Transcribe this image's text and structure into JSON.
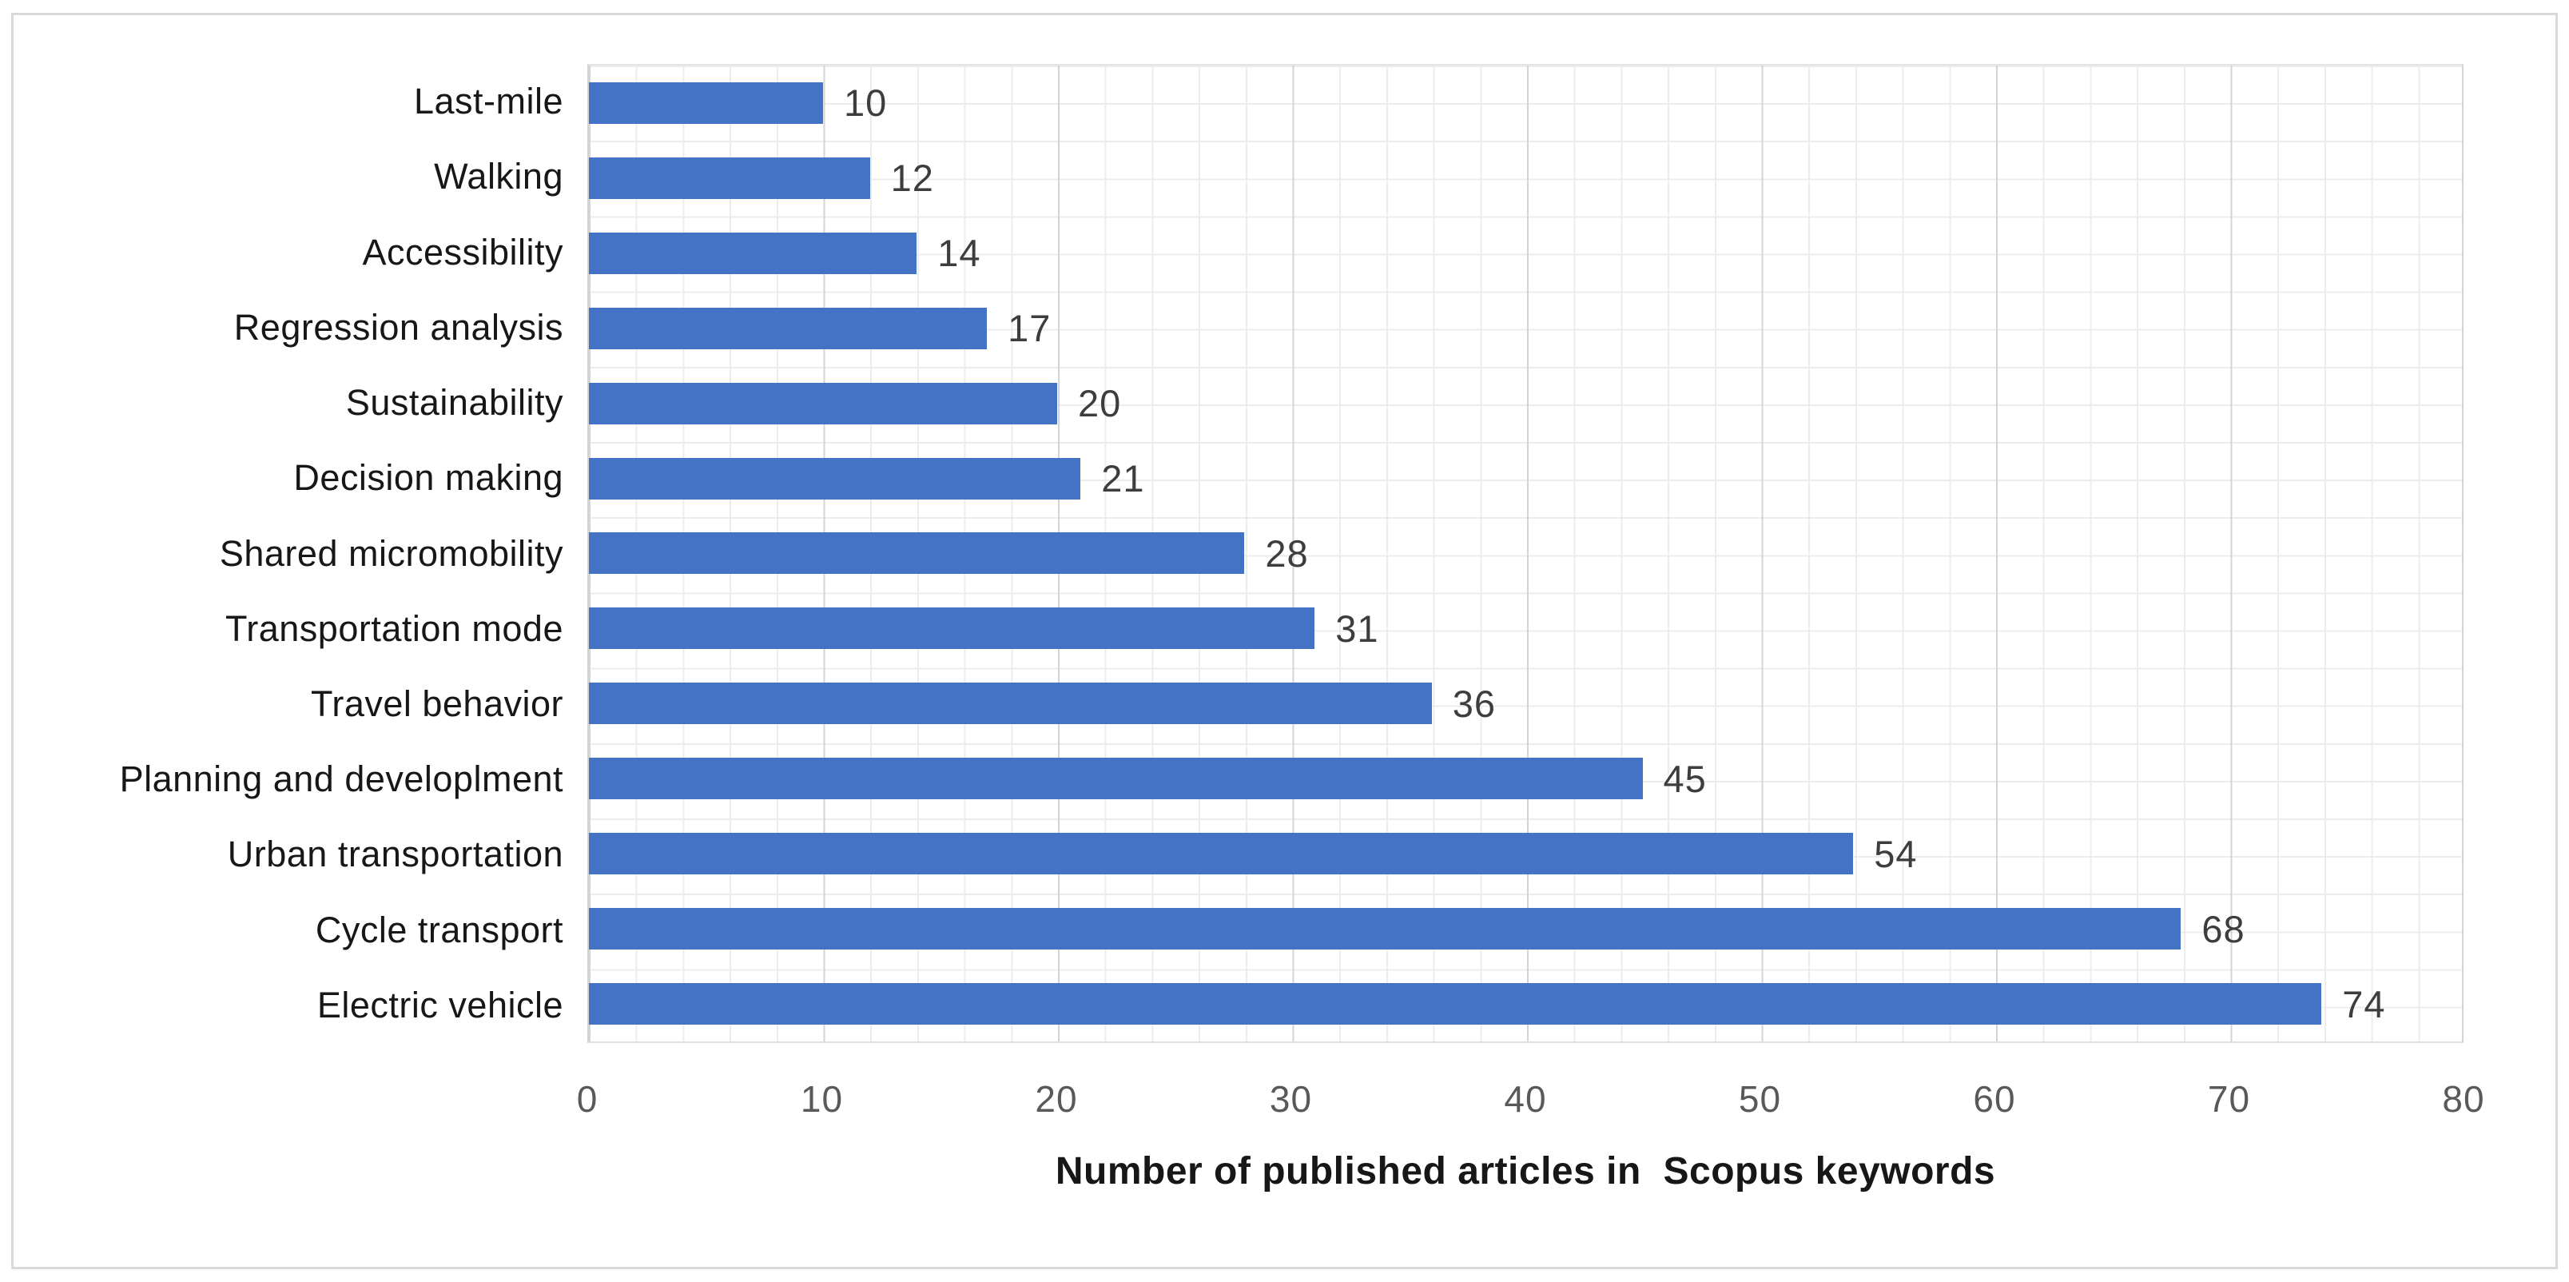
{
  "figure": {
    "frame_border_color": "#d9d9d9",
    "background_color": "#ffffff"
  },
  "chart_data": {
    "type": "bar",
    "orientation": "horizontal",
    "categories": [
      "Last-mile",
      "Walking",
      "Accessibility",
      "Regression analysis",
      "Sustainability",
      "Decision making",
      "Shared micromobility",
      "Transportation mode",
      "Travel behavior",
      "Planning and developlment",
      "Urban transportation",
      "Cycle transport",
      "Electric vehicle"
    ],
    "values": [
      10,
      12,
      14,
      17,
      20,
      21,
      28,
      31,
      36,
      45,
      54,
      68,
      74
    ],
    "data_labels_shown": true,
    "title": "",
    "xlabel": "Number of published articles in  Scopus keywords",
    "ylabel": "",
    "xlim": [
      0,
      80
    ],
    "x_ticks": [
      0,
      10,
      20,
      30,
      40,
      50,
      60,
      70,
      80
    ],
    "grid": "major-and-minor-mesh",
    "legend": "none",
    "bar_color": "#4472C4",
    "major_gridline_color": "#d4d4d4",
    "minor_gridline_color": "#ececec",
    "tick_label_color": "#595959",
    "category_label_color": "#171717",
    "data_label_color": "#3d3d3d"
  }
}
